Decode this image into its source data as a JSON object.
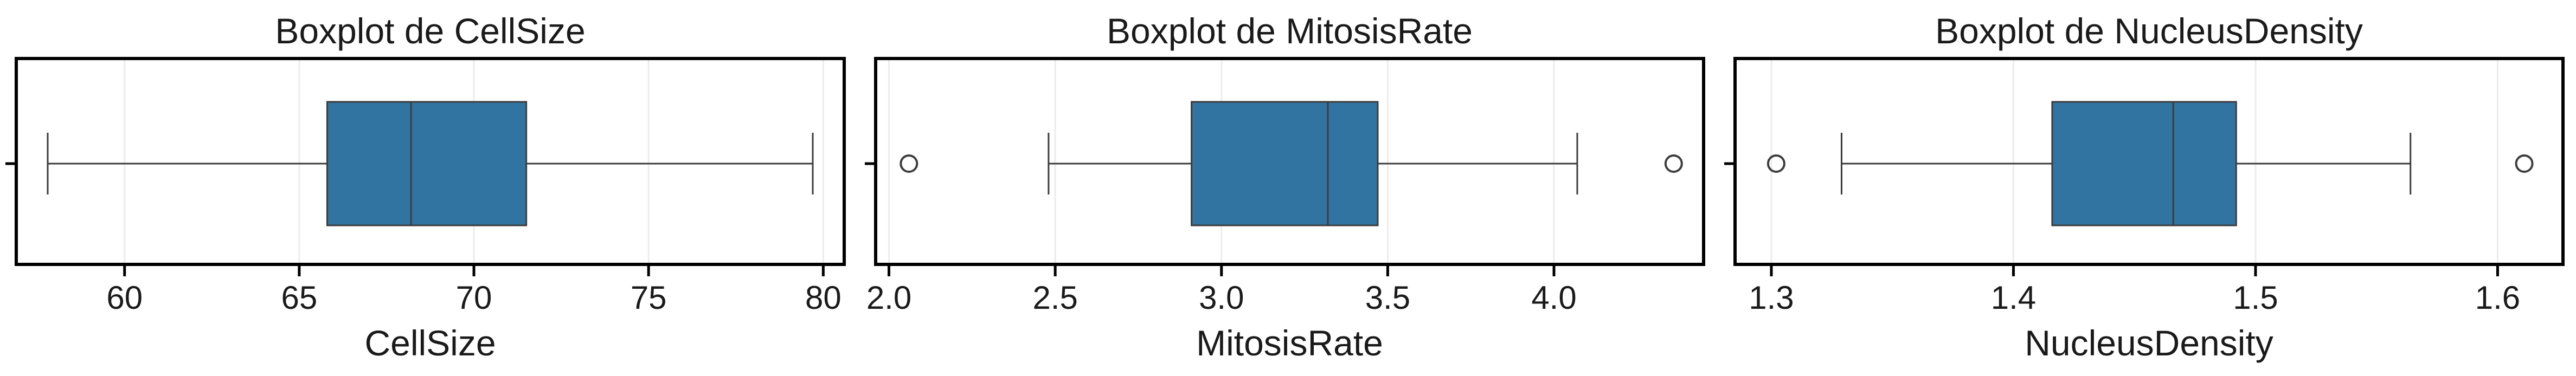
{
  "colors": {
    "box_fill": "#3274a1",
    "line": "#3d3d3d",
    "frame": "#000000",
    "grid": "#ececec"
  },
  "chart_data": [
    {
      "type": "boxplot",
      "title": "Boxplot de CellSize",
      "xlabel": "CellSize",
      "xlim": [
        56.9,
        80.6
      ],
      "ticks": [
        60,
        65,
        70,
        75,
        80
      ],
      "tick_labels": [
        "60",
        "65",
        "70",
        "75",
        "80"
      ],
      "grid": true,
      "stats": {
        "whisker_low": 57.8,
        "q1": 65.8,
        "median": 68.2,
        "q3": 71.5,
        "whisker_high": 79.7
      },
      "outliers": []
    },
    {
      "type": "boxplot",
      "title": "Boxplot de MitosisRate",
      "xlabel": "MitosisRate",
      "xlim": [
        1.96,
        4.45
      ],
      "ticks": [
        2.0,
        2.5,
        3.0,
        3.5,
        4.0
      ],
      "tick_labels": [
        "2.0",
        "2.5",
        "3.0",
        "3.5",
        "4.0"
      ],
      "grid": true,
      "stats": {
        "whisker_low": 2.48,
        "q1": 2.91,
        "median": 3.32,
        "q3": 3.47,
        "whisker_high": 4.07
      },
      "outliers": [
        2.06,
        4.36
      ]
    },
    {
      "type": "boxplot",
      "title": "Boxplot de NucleusDensity",
      "xlabel": "NucleusDensity",
      "xlim": [
        1.285,
        1.627
      ],
      "ticks": [
        1.3,
        1.4,
        1.5,
        1.6
      ],
      "tick_labels": [
        "1.3",
        "1.4",
        "1.5",
        "1.6"
      ],
      "grid": true,
      "stats": {
        "whisker_low": 1.329,
        "q1": 1.416,
        "median": 1.466,
        "q3": 1.492,
        "whisker_high": 1.564
      },
      "outliers": [
        1.302,
        1.611
      ]
    }
  ]
}
